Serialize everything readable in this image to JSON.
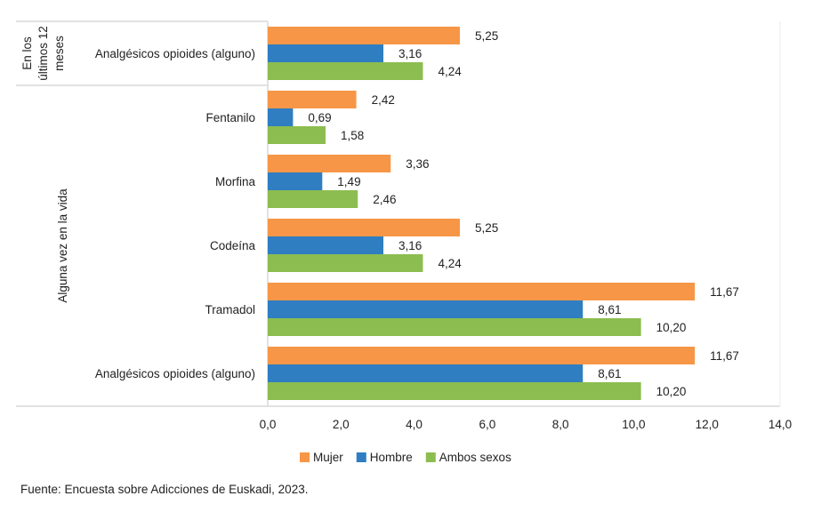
{
  "chart_data": {
    "type": "bar",
    "orientation": "horizontal",
    "groups": [
      {
        "label": "En los últimos 12 meses",
        "label_lines": [
          "En los",
          "últimos 12",
          "meses"
        ],
        "categories": [
          0
        ]
      },
      {
        "label": "Alguna vez en la vida",
        "label_lines": [
          "Alguna vez en la vida"
        ],
        "categories": [
          1,
          2,
          3,
          4,
          5
        ]
      }
    ],
    "categories": [
      "Analgésicos opioides (alguno)",
      "Fentanilo",
      "Morfina",
      "Codeína",
      "Tramadol",
      "Analgésicos opioides (alguno)"
    ],
    "series": [
      {
        "name": "Mujer",
        "color": "#F79646",
        "values": [
          5.25,
          2.42,
          3.36,
          5.25,
          11.67,
          11.67
        ],
        "labels": [
          "5,25",
          "2,42",
          "3,36",
          "5,25",
          "11,67",
          "11,67"
        ]
      },
      {
        "name": "Hombre",
        "color": "#2E7EC1",
        "values": [
          3.16,
          0.69,
          1.49,
          3.16,
          8.61,
          8.61
        ],
        "labels": [
          "3,16",
          "0,69",
          "1,49",
          "3,16",
          "8,61",
          "8,61"
        ]
      },
      {
        "name": "Ambos sexos",
        "color": "#8CBD50",
        "values": [
          4.24,
          1.58,
          2.46,
          4.24,
          10.2,
          10.2
        ],
        "labels": [
          "4,24",
          "1,58",
          "2,46",
          "4,24",
          "10,20",
          "10,20"
        ]
      }
    ],
    "xlim": [
      0,
      14
    ],
    "xticks": [
      "0,0",
      "2,0",
      "4,0",
      "6,0",
      "8,0",
      "10,0",
      "12,0",
      "14,0"
    ],
    "grid": false,
    "legend": "bottom"
  },
  "source": "Fuente: Encuesta sobre Adicciones de Euskadi, 2023."
}
